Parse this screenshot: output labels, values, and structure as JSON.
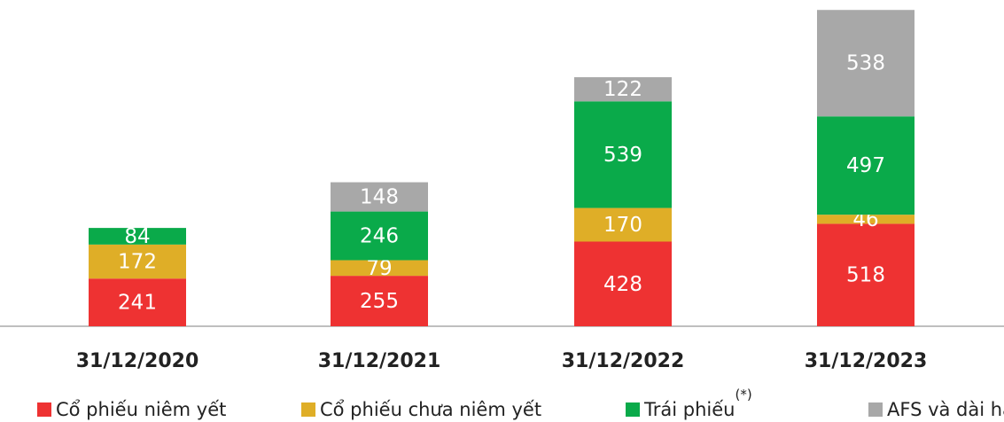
{
  "chart_data": {
    "type": "stacked_bar",
    "categories": [
      "31/12/2020",
      "31/12/2021",
      "31/12/2022",
      "31/12/2023"
    ],
    "series": [
      {
        "name": "Cổ phiếu niêm yết",
        "color": "#ee3232",
        "values": [
          241,
          255,
          428,
          518
        ]
      },
      {
        "name": "Cổ phiếu chưa niêm yết",
        "color": "#dfae27",
        "values": [
          172,
          79,
          170,
          46
        ]
      },
      {
        "name": "Trái phiếu",
        "note": "(*)",
        "color": "#0aaa4a",
        "values": [
          84,
          246,
          539,
          497
        ]
      },
      {
        "name": "AFS và dài hạn",
        "note": "(**)",
        "color": "#a8a8a8",
        "values": [
          null,
          148,
          122,
          538
        ]
      }
    ],
    "ylim": [
      0,
      1600
    ],
    "legend": "bottom"
  }
}
